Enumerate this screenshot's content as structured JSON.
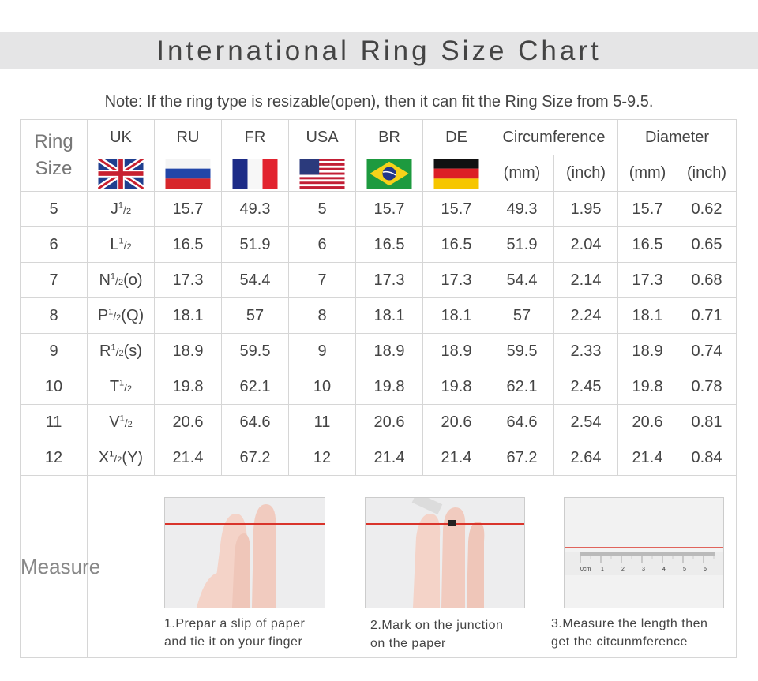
{
  "title": "International Ring Size Chart",
  "note": "Note: If the ring type is resizable(open), then it can fit the Ring Size from 5-9.5.",
  "headers": {
    "ring_size_line1": "Ring",
    "ring_size_line2": "Size",
    "uk": "UK",
    "ru": "RU",
    "fr": "FR",
    "usa": "USA",
    "br": "BR",
    "de": "DE",
    "circumference": "Circumference",
    "diameter": "Diameter",
    "circ_mm": "(mm)",
    "circ_inch": "(inch)",
    "diam_mm": "(mm)",
    "diam_inch": "(inch)"
  },
  "flags": [
    "uk-flag-icon",
    "russia-flag-icon",
    "france-flag-icon",
    "usa-flag-icon",
    "brazil-flag-icon",
    "germany-flag-icon"
  ],
  "rows": [
    {
      "size": "5",
      "uk_letter": "J",
      "uk_suffix": "",
      "ru": "15.7",
      "fr": "49.3",
      "usa": "5",
      "br": "15.7",
      "de": "15.7",
      "circ_mm": "49.3",
      "circ_inch": "1.95",
      "diam_mm": "15.7",
      "diam_inch": "0.62"
    },
    {
      "size": "6",
      "uk_letter": "L",
      "uk_suffix": "",
      "ru": "16.5",
      "fr": "51.9",
      "usa": "6",
      "br": "16.5",
      "de": "16.5",
      "circ_mm": "51.9",
      "circ_inch": "2.04",
      "diam_mm": "16.5",
      "diam_inch": "0.65"
    },
    {
      "size": "7",
      "uk_letter": "N",
      "uk_suffix": "(o)",
      "ru": "17.3",
      "fr": "54.4",
      "usa": "7",
      "br": "17.3",
      "de": "17.3",
      "circ_mm": "54.4",
      "circ_inch": "2.14",
      "diam_mm": "17.3",
      "diam_inch": "0.68"
    },
    {
      "size": "8",
      "uk_letter": "P",
      "uk_suffix": "(Q)",
      "ru": "18.1",
      "fr": "57",
      "usa": "8",
      "br": "18.1",
      "de": "18.1",
      "circ_mm": "57",
      "circ_inch": "2.24",
      "diam_mm": "18.1",
      "diam_inch": "0.71"
    },
    {
      "size": "9",
      "uk_letter": "R",
      "uk_suffix": "(s)",
      "ru": "18.9",
      "fr": "59.5",
      "usa": "9",
      "br": "18.9",
      "de": "18.9",
      "circ_mm": "59.5",
      "circ_inch": "2.33",
      "diam_mm": "18.9",
      "diam_inch": "0.74"
    },
    {
      "size": "10",
      "uk_letter": "T",
      "uk_suffix": "",
      "ru": "19.8",
      "fr": "62.1",
      "usa": "10",
      "br": "19.8",
      "de": "19.8",
      "circ_mm": "62.1",
      "circ_inch": "2.45",
      "diam_mm": "19.8",
      "diam_inch": "0.78"
    },
    {
      "size": "11",
      "uk_letter": "V",
      "uk_suffix": "",
      "ru": "20.6",
      "fr": "64.6",
      "usa": "11",
      "br": "20.6",
      "de": "20.6",
      "circ_mm": "64.6",
      "circ_inch": "2.54",
      "diam_mm": "20.6",
      "diam_inch": "0.81"
    },
    {
      "size": "12",
      "uk_letter": "X",
      "uk_suffix": "(Y)",
      "ru": "21.4",
      "fr": "67.2",
      "usa": "12",
      "br": "21.4",
      "de": "21.4",
      "circ_mm": "67.2",
      "circ_inch": "2.64",
      "diam_mm": "21.4",
      "diam_inch": "0.84"
    }
  ],
  "half_sup": "1",
  "half_sub": "2",
  "measure": {
    "label": "Measure",
    "steps": [
      {
        "line1": "1.Prepar a slip of paper",
        "line2": "and tie it on your finger"
      },
      {
        "line1": "2.Mark on the junction",
        "line2": "on the paper"
      },
      {
        "line1": "3.Measure the length then",
        "line2": "get the citcunmference"
      }
    ],
    "ruler_labels": [
      "0cm",
      "1",
      "2",
      "3",
      "4",
      "5",
      "6"
    ]
  },
  "colors": {
    "title_band": "#e5e5e6",
    "string": "#d9342b",
    "skin": "#f3cfc4"
  }
}
